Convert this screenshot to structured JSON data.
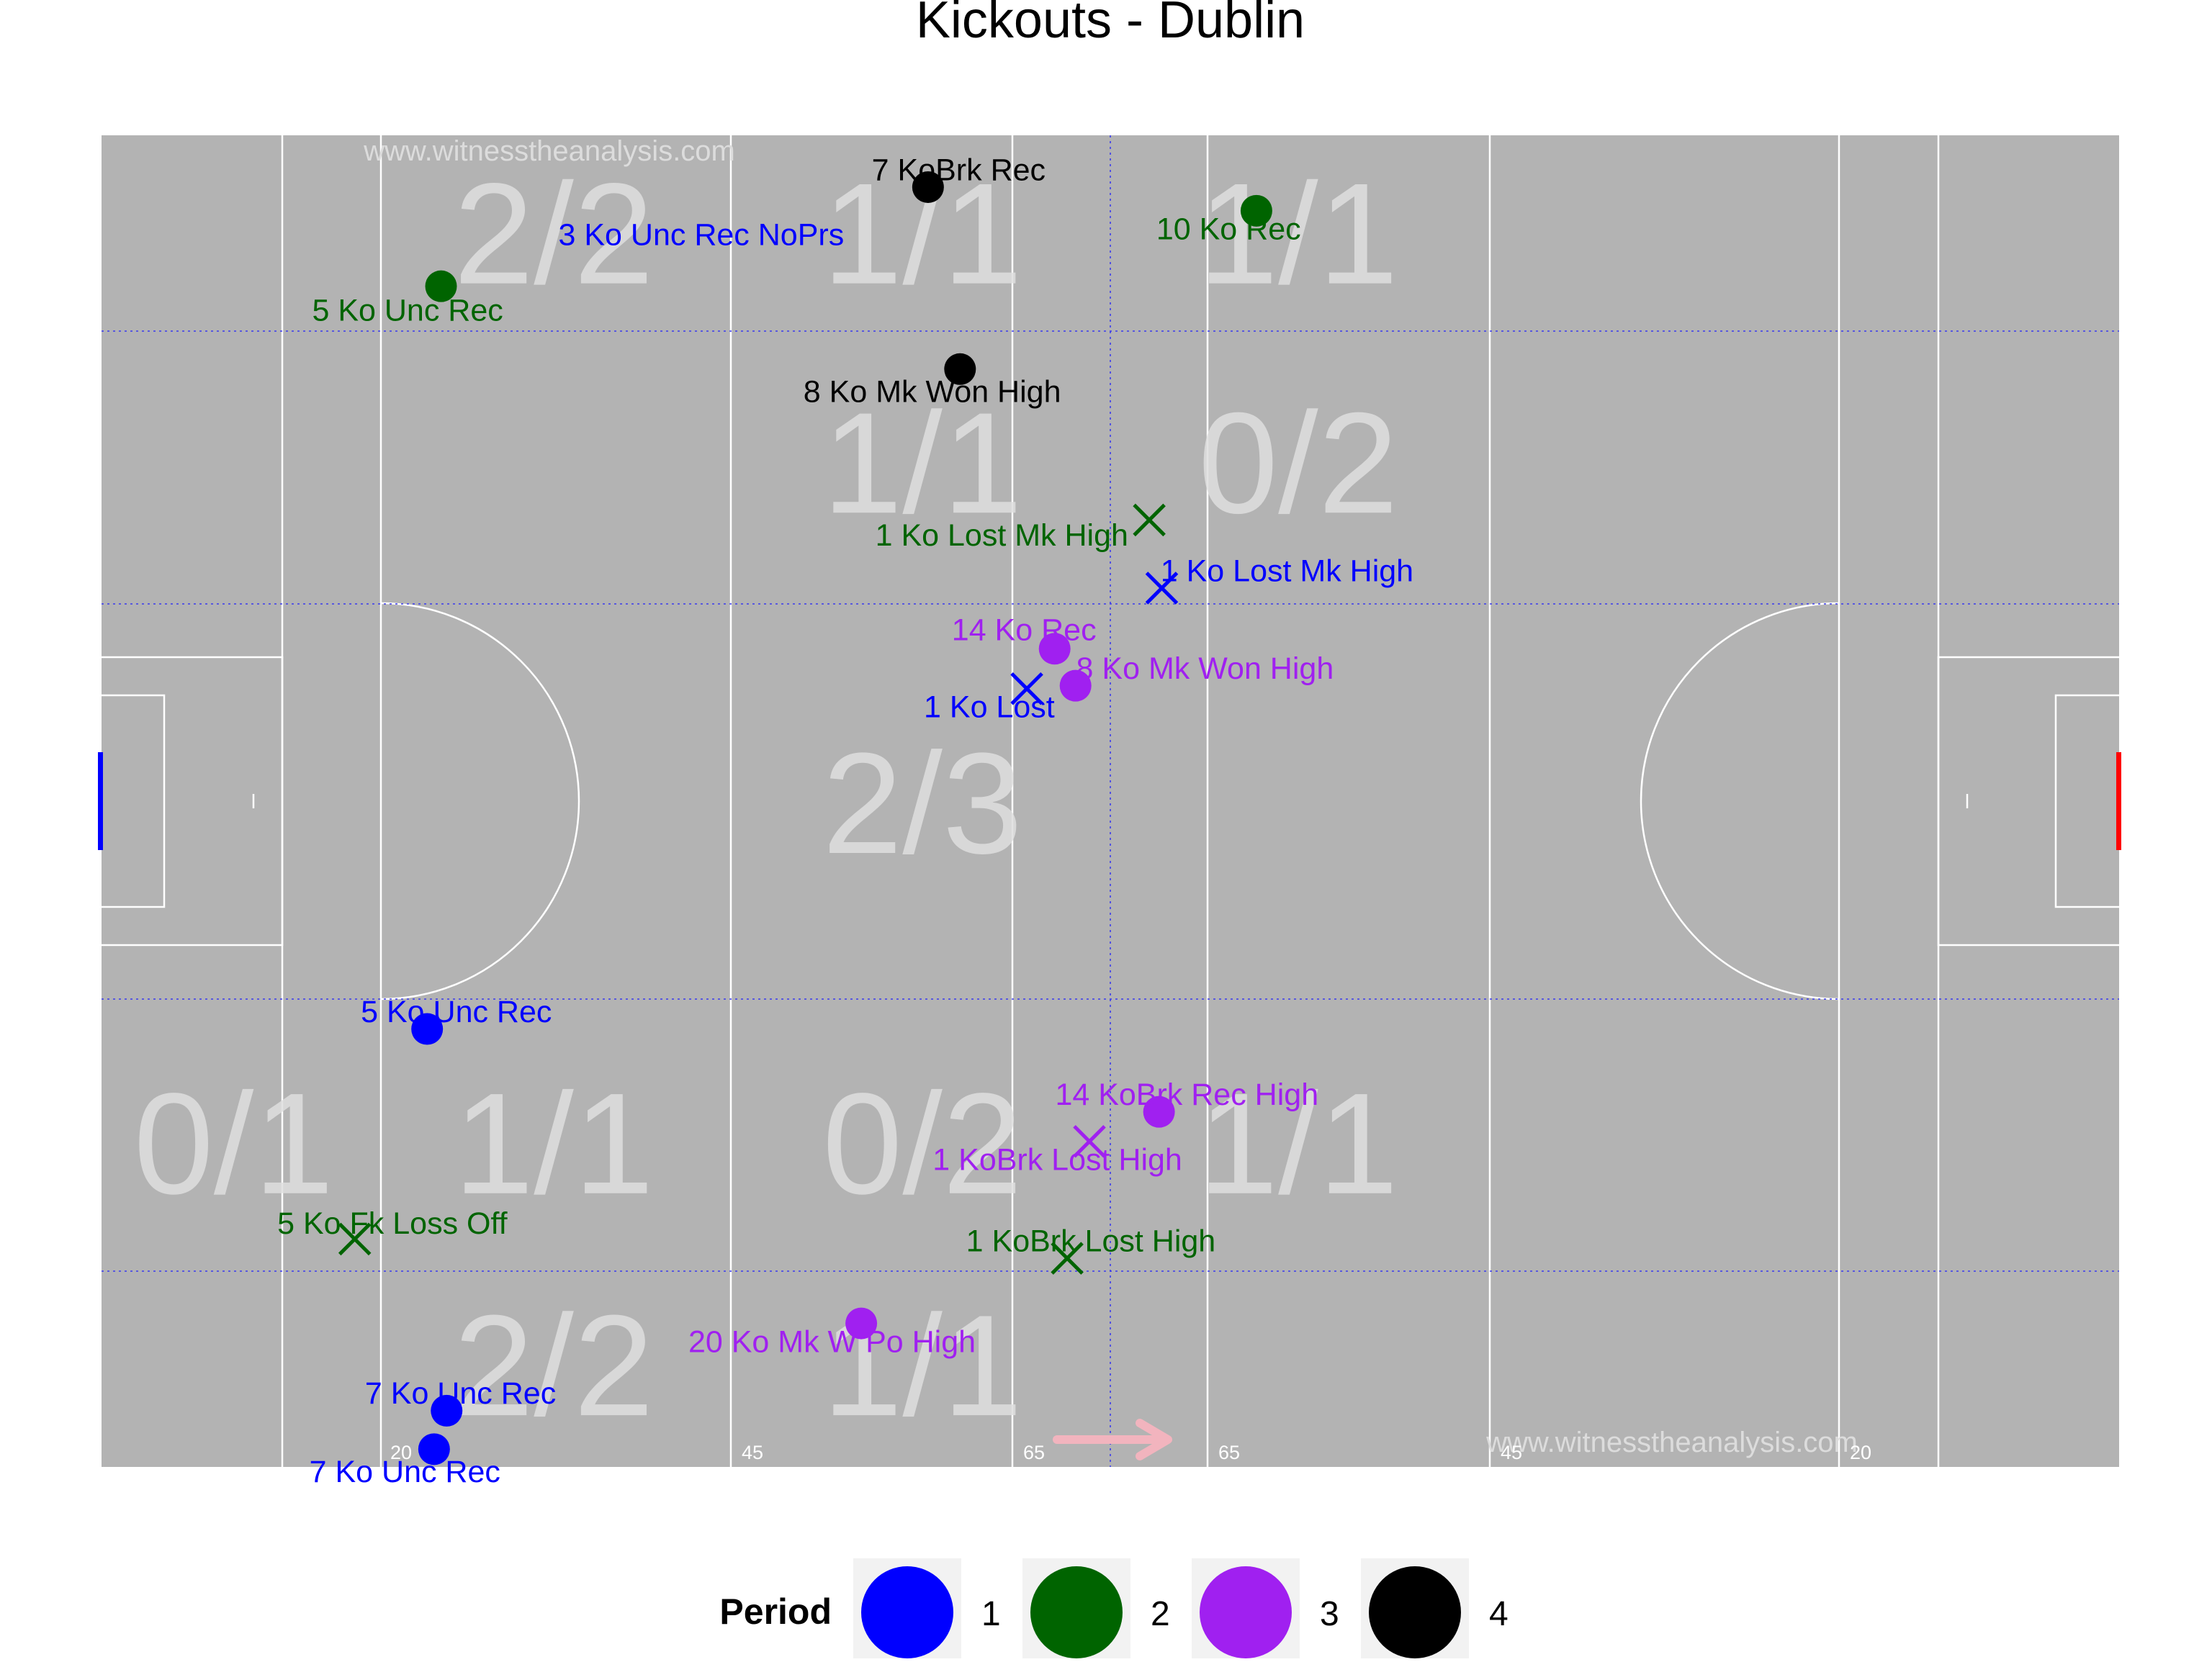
{
  "title": "Kickouts - Dublin",
  "watermark": "www.witnesstheanalysis.com",
  "pitch_distance_labels": [
    "20",
    "45",
    "65",
    "65",
    "45",
    "20"
  ],
  "chart_data": {
    "type": "scatter",
    "title": "Kickouts - Dublin",
    "xlim": [
      0,
      145
    ],
    "ylim": [
      0,
      90
    ],
    "grid": false,
    "legend": {
      "title": "Period",
      "placement": "bottom",
      "entries": [
        {
          "label": "1",
          "color": "#0000FF"
        },
        {
          "label": "2",
          "color": "#006400"
        },
        {
          "label": "3",
          "color": "#A020F0"
        },
        {
          "label": "4",
          "color": "#000000"
        }
      ]
    },
    "zone_labels": [
      {
        "text": "2/2",
        "x": 32.5,
        "y": 83.5
      },
      {
        "text": "1/1",
        "x": 59,
        "y": 83.5
      },
      {
        "text": "1/1",
        "x": 86,
        "y": 83.5
      },
      {
        "text": "1/1",
        "x": 59,
        "y": 68
      },
      {
        "text": "0/2",
        "x": 86,
        "y": 68
      },
      {
        "text": "2/3",
        "x": 59,
        "y": 45
      },
      {
        "text": "0/1",
        "x": 9.5,
        "y": 22
      },
      {
        "text": "1/1",
        "x": 32.5,
        "y": 22
      },
      {
        "text": "0/2",
        "x": 59,
        "y": 22
      },
      {
        "text": "1/1",
        "x": 86,
        "y": 22
      },
      {
        "text": "2/2",
        "x": 32.5,
        "y": 7
      },
      {
        "text": "1/1",
        "x": 59,
        "y": 7
      }
    ],
    "points": [
      {
        "period": "1",
        "marker": "circle",
        "x": 23.4,
        "y": 29.6,
        "label": "5 Ko Unc Rec",
        "lx": 25.5,
        "ly": 30.8
      },
      {
        "period": "1",
        "marker": "circle",
        "x": 24.8,
        "y": 3.8,
        "label": "7 Ko Unc Rec",
        "lx": 25.8,
        "ly": 5.0
      },
      {
        "period": "1",
        "marker": "circle",
        "x": 23.9,
        "y": 1.2,
        "label": "7 Ko Unc Rec",
        "lx": 21.8,
        "ly": -0.3
      },
      {
        "period": "1",
        "marker": "x",
        "x": 66.5,
        "y": 52.6,
        "label": "1 Ko Lost",
        "lx": 63.8,
        "ly": 51.4
      },
      {
        "period": "1",
        "marker": "x",
        "x": 76.2,
        "y": 59.4,
        "label": "1 Ko Lost Mk High",
        "lx": 85.2,
        "ly": 60.6
      },
      {
        "period": "1",
        "marker": "label",
        "label": "3 Ko Unc Rec NoPrs",
        "lx": 43.1,
        "ly": 83.3
      },
      {
        "period": "2",
        "marker": "circle",
        "x": 24.4,
        "y": 79.8,
        "label": "5 Ko Unc Rec",
        "lx": 22.0,
        "ly": 78.2
      },
      {
        "period": "2",
        "marker": "circle",
        "x": 83.0,
        "y": 84.9,
        "label": "10 Ko Rec",
        "lx": 81.0,
        "ly": 83.7
      },
      {
        "period": "2",
        "marker": "x",
        "x": 75.3,
        "y": 64.0,
        "label": "1 Ko Lost Mk High",
        "lx": 64.7,
        "ly": 63.0
      },
      {
        "period": "2",
        "marker": "x",
        "x": 18.2,
        "y": 15.4,
        "label": "5 Ko Fk Loss Off",
        "lx": 20.9,
        "ly": 16.5
      },
      {
        "period": "2",
        "marker": "x",
        "x": 69.4,
        "y": 14.1,
        "label": "1 KoBrk Lost High",
        "lx": 71.1,
        "ly": 15.3
      },
      {
        "period": "3",
        "marker": "circle",
        "x": 68.5,
        "y": 55.3,
        "label": "14 Ko Rec",
        "lx": 66.3,
        "ly": 56.6
      },
      {
        "period": "3",
        "marker": "circle",
        "x": 70.0,
        "y": 52.8,
        "label": "8 Ko Mk Won High",
        "lx": 79.3,
        "ly": 54.0
      },
      {
        "period": "3",
        "marker": "circle",
        "x": 76.0,
        "y": 24.0,
        "label": "14 KoBrk Rec High",
        "lx": 78.0,
        "ly": 25.2
      },
      {
        "period": "3",
        "marker": "x",
        "x": 71.0,
        "y": 22.0,
        "label": "1 KoBrk Lost High",
        "lx": 68.7,
        "ly": 20.8
      },
      {
        "period": "3",
        "marker": "circle",
        "x": 54.6,
        "y": 9.7,
        "label": "20 Ko Mk W Po High",
        "lx": 52.5,
        "ly": 8.5
      },
      {
        "period": "4",
        "marker": "circle",
        "x": 59.4,
        "y": 86.5,
        "label": "7 KoBrk Rec",
        "lx": 61.6,
        "ly": 87.7
      },
      {
        "period": "4",
        "marker": "circle",
        "x": 61.7,
        "y": 74.2,
        "label": "8 Ko Mk Won High",
        "lx": 59.7,
        "ly": 72.7
      }
    ]
  }
}
